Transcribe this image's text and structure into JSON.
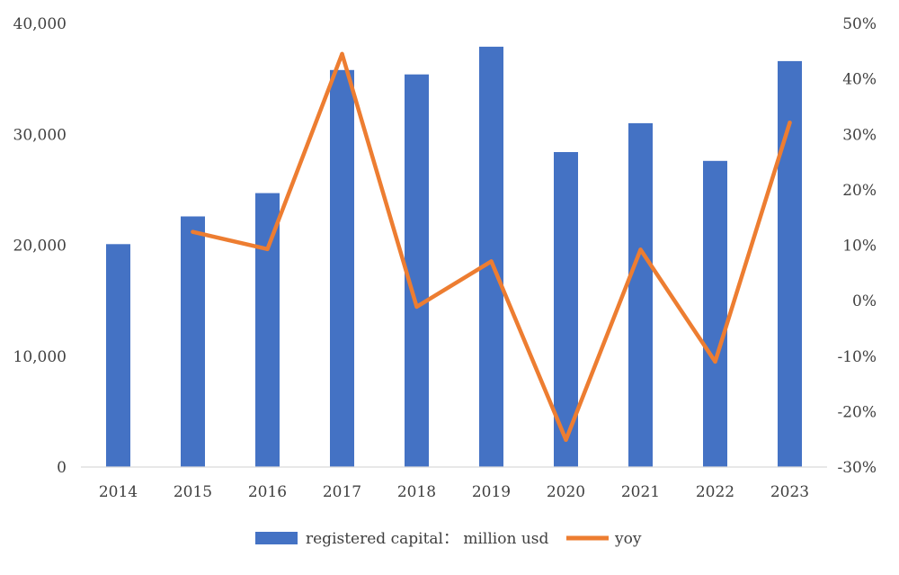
{
  "chart_data": {
    "type": "bar",
    "categories": [
      "2014",
      "2015",
      "2016",
      "2017",
      "2018",
      "2019",
      "2020",
      "2021",
      "2022",
      "2023"
    ],
    "series": [
      {
        "name": "registered capital： million usd",
        "type": "bar",
        "axis": "left",
        "color": "#4472C4",
        "values": [
          20100,
          22600,
          24700,
          35800,
          35400,
          37900,
          28400,
          31000,
          27600,
          36600
        ]
      },
      {
        "name": "yoy",
        "type": "line",
        "axis": "right",
        "color": "#ED7D31",
        "values": [
          null,
          12.4,
          9.3,
          44.5,
          -1.1,
          7.1,
          -25.1,
          9.2,
          -11.0,
          32.1
        ]
      }
    ],
    "y_left": {
      "range": [
        0,
        40000
      ],
      "ticks": [
        0,
        10000,
        20000,
        30000,
        40000
      ],
      "tick_labels": [
        "0",
        "10,000",
        "20,000",
        "30,000",
        "40,000"
      ]
    },
    "y_right": {
      "range": [
        -30,
        50
      ],
      "ticks": [
        -30,
        -20,
        -10,
        0,
        10,
        20,
        30,
        40,
        50
      ],
      "tick_labels": [
        "-30%",
        "-20%",
        "-10%",
        "0%",
        "10%",
        "20%",
        "30%",
        "40%",
        "50%"
      ]
    },
    "grid": false,
    "legend": {
      "position": "bottom",
      "entries": [
        "registered capital： million usd",
        "yoy"
      ]
    },
    "title": "",
    "xlabel": "",
    "ylabel": ""
  }
}
